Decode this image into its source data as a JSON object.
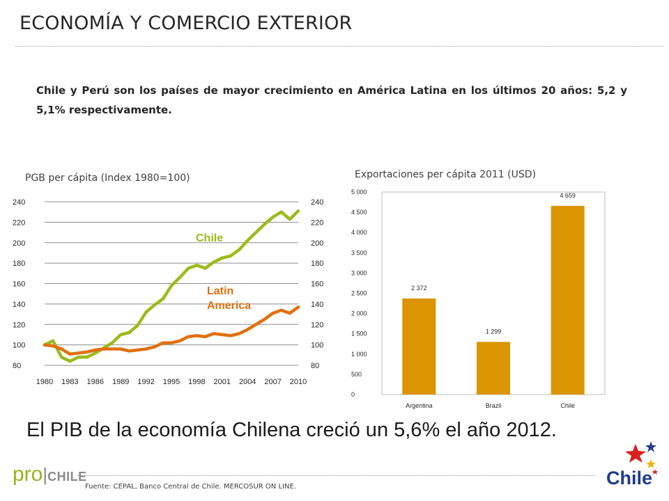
{
  "header": {
    "title": "ECONOMÍA Y COMERCIO EXTERIOR"
  },
  "lead_text": "Chile y Perú son los países de mayor crecimiento en América Latina en los últimos 20 años: 5,2 y 5,1% respectivamente.",
  "headline": "El PIB de la economía Chilena creció un 5,6% el año 2012.",
  "source": "Fuente: CEPAL, Banco Central de Chile. MERCOSUR ON LINE.",
  "footer_logo": {
    "pro": "pro",
    "sep": "|",
    "chile": "CHILE"
  },
  "brand_logo": {
    "text": "Chile"
  },
  "colors": {
    "chile_line": "#9bbb1c",
    "latam_line": "#e07010",
    "bar": "#db9500"
  },
  "chart_data": [
    {
      "type": "line",
      "title": "PGB per cápita (Index 1980=100)",
      "x_ticks": [
        "1980",
        "1983",
        "1986",
        "1989",
        "1992",
        "1995",
        "1998",
        "2001",
        "2004",
        "2007",
        "2010"
      ],
      "ylim": [
        80,
        240
      ],
      "y_ticks": [
        80,
        100,
        120,
        140,
        160,
        180,
        200,
        220,
        240
      ],
      "grid": true,
      "x": [
        1980,
        1981,
        1982,
        1983,
        1984,
        1985,
        1986,
        1987,
        1988,
        1989,
        1990,
        1991,
        1992,
        1993,
        1994,
        1995,
        1996,
        1997,
        1998,
        1999,
        2000,
        2001,
        2002,
        2003,
        2004,
        2005,
        2006,
        2007,
        2008,
        2009,
        2010
      ],
      "series": [
        {
          "name": "Chile",
          "label_lines": [
            "Chile"
          ],
          "color": "#9bbb1c",
          "values": [
            100,
            104,
            88,
            84,
            88,
            88,
            92,
            97,
            102,
            110,
            112,
            119,
            132,
            139,
            145,
            158,
            166,
            175,
            178,
            175,
            181,
            185,
            187,
            193,
            202,
            210,
            218,
            225,
            230,
            223,
            231
          ]
        },
        {
          "name": "Latin America",
          "label_lines": [
            "Latin",
            "America"
          ],
          "color": "#e07010",
          "values": [
            100,
            99,
            96,
            91,
            92,
            93,
            95,
            96,
            96,
            96,
            94,
            95,
            96,
            98,
            102,
            102,
            104,
            108,
            109,
            108,
            111,
            110,
            109,
            111,
            115,
            120,
            125,
            131,
            134,
            131,
            137
          ]
        }
      ]
    },
    {
      "type": "bar",
      "title": "Exportaciones per cápita 2011 (USD)",
      "categories": [
        "Argentina",
        "Brazil",
        "Chile"
      ],
      "values": [
        2372,
        1299,
        4659
      ],
      "data_labels": [
        "2 372",
        "1 299",
        "4 659"
      ],
      "ylim": [
        0,
        5000
      ],
      "y_ticks": [
        0,
        500,
        1000,
        1500,
        2000,
        2500,
        3000,
        3500,
        4000,
        4500,
        5000
      ],
      "y_tick_labels": [
        "0",
        "500",
        "1 000",
        "1 500",
        "2 000",
        "2 500",
        "3 000",
        "3 500",
        "4 000",
        "4 500",
        "5 000"
      ],
      "grid": false
    }
  ]
}
